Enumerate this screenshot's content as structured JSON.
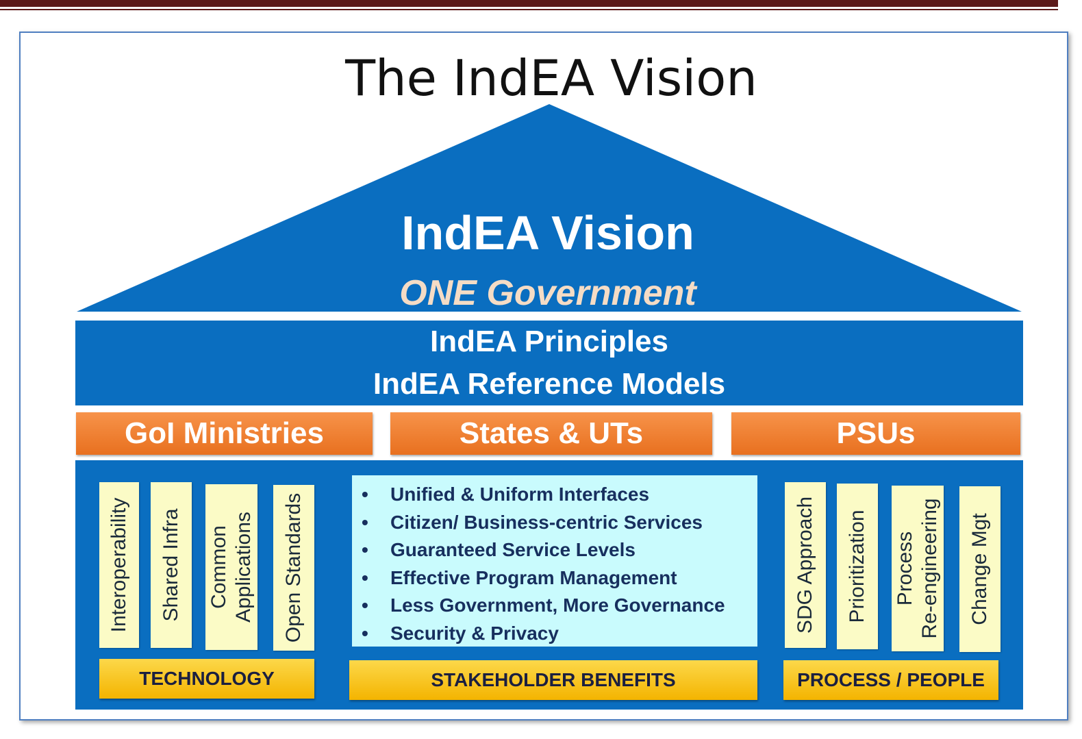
{
  "title": "The IndEA Vision",
  "roof": {
    "heading": "IndEA Vision",
    "subheading": "ONE Government"
  },
  "principles": {
    "line1": "IndEA Principles",
    "line2": "IndEA Reference Models"
  },
  "stakeholders": [
    "GoI Ministries",
    "States & UTs",
    "PSUs"
  ],
  "technology": {
    "label": "TECHNOLOGY",
    "pillars": [
      "Interoperability",
      "Shared Infra",
      "Common\nApplications",
      "Open Standards"
    ]
  },
  "benefits": {
    "label": "STAKEHOLDER BENEFITS",
    "items": [
      "Unified & Uniform Interfaces",
      "Citizen/ Business-centric Services",
      "Guaranteed Service Levels",
      "Effective Program Management",
      "Less Government, More Governance",
      "Security & Privacy"
    ]
  },
  "process": {
    "label": "PROCESS / PEOPLE",
    "pillars": [
      "SDG Approach",
      "Prioritization",
      "Process\nRe-engineering",
      "Change Mgt"
    ]
  },
  "colors": {
    "blue": "#0a6ec0",
    "orange": "#ee7b2c",
    "yellow": "#f9c41c",
    "pillar": "#fbfbc6",
    "benefits_bg": "#c9fbfd",
    "rule": "#5c1a1a"
  }
}
